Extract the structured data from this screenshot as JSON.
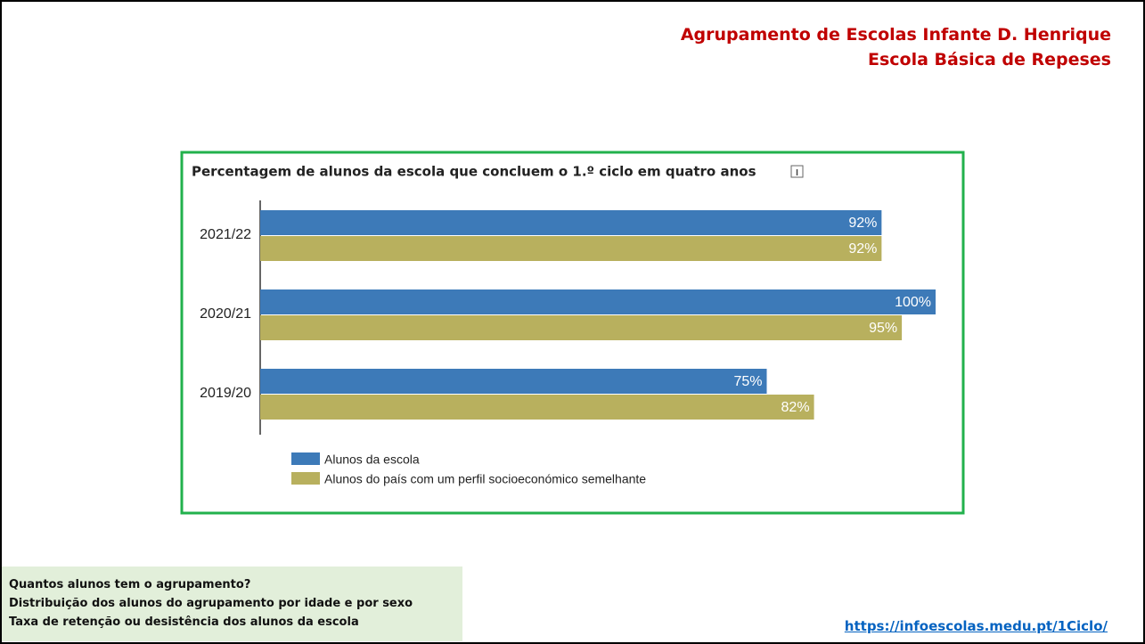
{
  "header": [
    "Agrupamento de Escolas Infante D. Henrique",
    "Escola Básica de Repeses"
  ],
  "chart_data": {
    "type": "bar",
    "orientation": "horizontal",
    "title": "Percentagem de alunos da escola que concluem o 1.º ciclo em quatro anos",
    "categories": [
      "2021/22",
      "2020/21",
      "2019/20"
    ],
    "series": [
      {
        "name": "Alunos da escola",
        "color": "#3d7ab8",
        "values": [
          92,
          100,
          75
        ],
        "value_labels": [
          "92%",
          "100%",
          "75%"
        ]
      },
      {
        "name": "Alunos do país com um perfil socioeconómico semelhante",
        "color": "#b8b05e",
        "values": [
          92,
          95,
          82
        ],
        "value_labels": [
          "92%",
          "95%",
          "82%"
        ]
      }
    ],
    "xlim": [
      0,
      100
    ],
    "legend": "bottom-left"
  },
  "links": [
    "Quantos alunos tem o agrupamento?",
    "Distribuição dos alunos do agrupamento por idade e por sexo",
    "Taxa de retenção ou desistência dos alunos da escola"
  ],
  "url": "https://infoescolas.medu.pt/1Ciclo/"
}
